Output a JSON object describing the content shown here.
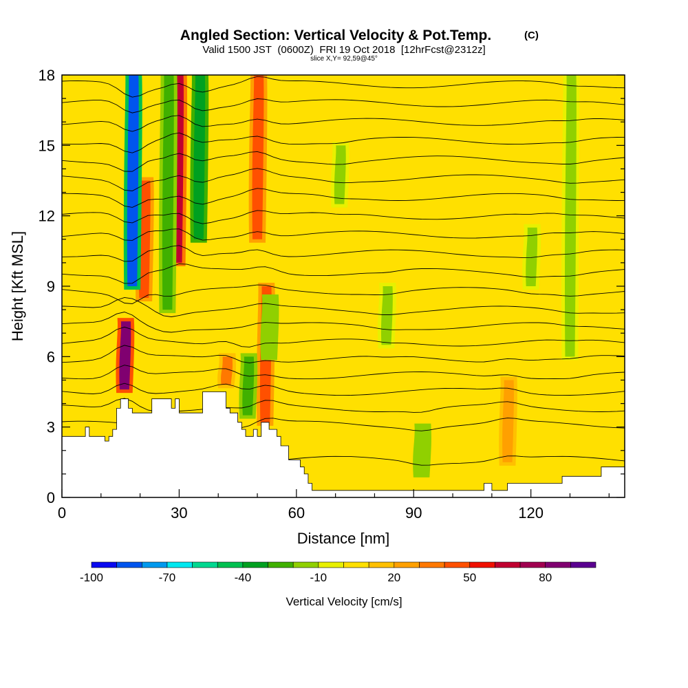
{
  "header": {
    "title_main": "Angled Section: Vertical Velocity & Pot.Temp.",
    "title_unit": "(C)",
    "valid_a": "Valid 1500 JST",
    "valid_b": "(0600Z)",
    "valid_c": "FRI 19 Oct 2018",
    "valid_d": "[12hrFcst@2312z]",
    "slice": "slice X,Y= 92,59@45°"
  },
  "chart_data": {
    "type": "heatmap",
    "xlabel": "Distance [nm]",
    "ylabel": "Height [Kft MSL]",
    "xlim": [
      0,
      144
    ],
    "ylim": [
      0,
      18
    ],
    "xticks": [
      "0",
      "30",
      "60",
      "90",
      "120"
    ],
    "yticks": [
      "0",
      "3",
      "6",
      "9",
      "12",
      "15",
      "18"
    ],
    "colorbar": {
      "label": "Vertical Velocity [cm/s]",
      "ticks": [
        "-100",
        "-70",
        "-40",
        "-10",
        "20",
        "50",
        "80"
      ],
      "levels": [
        -100,
        -90,
        -80,
        -70,
        -60,
        -50,
        -40,
        -30,
        -20,
        -10,
        0,
        10,
        20,
        30,
        40,
        50,
        60,
        70,
        80,
        90
      ],
      "colors": [
        "#0a0af0",
        "#0055ee",
        "#0099ee",
        "#00e8f0",
        "#00d890",
        "#00c050",
        "#00a020",
        "#40b000",
        "#90d000",
        "#e8f000",
        "#ffe000",
        "#ffc000",
        "#ffa000",
        "#ff7800",
        "#ff5000",
        "#f01000",
        "#c00030",
        "#a00050",
        "#800070",
        "#5a0090"
      ]
    },
    "background_value": 5,
    "updraft_features": [
      {
        "x": 16,
        "y_bottom": 4.6,
        "y_top": 7.5,
        "value": 85
      },
      {
        "x": 21,
        "y_bottom": 8.5,
        "y_top": 13.5,
        "value": 40
      },
      {
        "x": 29.5,
        "y_bottom": 10,
        "y_top": 18,
        "value": 60
      },
      {
        "x": 50,
        "y_bottom": 11,
        "y_top": 18,
        "value": 45
      },
      {
        "x": 52,
        "y_bottom": 3.2,
        "y_top": 9,
        "value": 40
      },
      {
        "x": 42,
        "y_bottom": 4.8,
        "y_top": 6,
        "value": 35
      },
      {
        "x": 114,
        "y_bottom": 1.5,
        "y_top": 5,
        "value": 25
      }
    ],
    "downdraft_features": [
      {
        "x": 18,
        "y_bottom": 9,
        "y_top": 18,
        "value": -90
      },
      {
        "x": 35,
        "y_bottom": 11,
        "y_top": 18,
        "value": -40
      },
      {
        "x": 27,
        "y_bottom": 8,
        "y_top": 18,
        "value": -30
      },
      {
        "x": 53,
        "y_bottom": 6,
        "y_top": 8.5,
        "value": -20
      },
      {
        "x": 47.5,
        "y_bottom": 3.5,
        "y_top": 6,
        "value": -25
      },
      {
        "x": 92,
        "y_bottom": 1,
        "y_top": 3,
        "value": -20
      },
      {
        "x": 130,
        "y_bottom": 6,
        "y_top": 18,
        "value": -12
      },
      {
        "x": 120,
        "y_bottom": 9,
        "y_top": 11.5,
        "value": -12
      },
      {
        "x": 83,
        "y_bottom": 6.5,
        "y_top": 9,
        "value": -12
      },
      {
        "x": 71,
        "y_bottom": 12.5,
        "y_top": 15,
        "value": -12
      }
    ],
    "terrain": [
      [
        0,
        2.6
      ],
      [
        6,
        2.6
      ],
      [
        6,
        3.0
      ],
      [
        7,
        3.0
      ],
      [
        7,
        2.6
      ],
      [
        11,
        2.6
      ],
      [
        11,
        2.4
      ],
      [
        12,
        2.4
      ],
      [
        12,
        2.6
      ],
      [
        13,
        2.6
      ],
      [
        13,
        2.9
      ],
      [
        14,
        2.9
      ],
      [
        14,
        3.8
      ],
      [
        15,
        3.8
      ],
      [
        15,
        4.2
      ],
      [
        17,
        4.2
      ],
      [
        17,
        3.8
      ],
      [
        18,
        3.8
      ],
      [
        18,
        3.6
      ],
      [
        23,
        3.6
      ],
      [
        23,
        4.2
      ],
      [
        28,
        4.2
      ],
      [
        28,
        3.8
      ],
      [
        29,
        3.8
      ],
      [
        29,
        4.2
      ],
      [
        30,
        4.2
      ],
      [
        30,
        3.6
      ],
      [
        36,
        3.6
      ],
      [
        36,
        4.5
      ],
      [
        42,
        4.5
      ],
      [
        42,
        3.8
      ],
      [
        43,
        3.8
      ],
      [
        43,
        3.6
      ],
      [
        45,
        3.6
      ],
      [
        45,
        3.2
      ],
      [
        46,
        3.2
      ],
      [
        46,
        2.9
      ],
      [
        47,
        2.9
      ],
      [
        47,
        2.6
      ],
      [
        49,
        2.6
      ],
      [
        49,
        2.9
      ],
      [
        50,
        2.9
      ],
      [
        50,
        2.6
      ],
      [
        51,
        2.6
      ],
      [
        51,
        3.2
      ],
      [
        53,
        3.2
      ],
      [
        53,
        2.9
      ],
      [
        55,
        2.9
      ],
      [
        55,
        2.6
      ],
      [
        56,
        2.6
      ],
      [
        56,
        2.2
      ],
      [
        58,
        2.2
      ],
      [
        58,
        1.6
      ],
      [
        61,
        1.6
      ],
      [
        61,
        1.3
      ],
      [
        62,
        1.3
      ],
      [
        62,
        1.0
      ],
      [
        63,
        1.0
      ],
      [
        63,
        0.6
      ],
      [
        64,
        0.6
      ],
      [
        64,
        0.3
      ],
      [
        71,
        0.3
      ],
      [
        80,
        0.3
      ],
      [
        100,
        0.3
      ],
      [
        108,
        0.3
      ],
      [
        108,
        0.6
      ],
      [
        110,
        0.6
      ],
      [
        110,
        0.3
      ],
      [
        114,
        0.3
      ],
      [
        114,
        0.6
      ],
      [
        128,
        0.6
      ],
      [
        128,
        0.9
      ],
      [
        138,
        0.9
      ],
      [
        138,
        1.3
      ],
      [
        144,
        1.3
      ]
    ],
    "isentropes_start_heights": [
      1.6,
      3.1,
      3.8,
      4.5,
      5.2,
      5.9,
      6.6,
      7.3,
      8.0,
      8.8,
      9.6,
      10.4,
      11.2,
      12.0,
      12.8,
      13.6,
      14.4,
      15.2,
      16.0,
      16.8,
      17.6
    ]
  }
}
